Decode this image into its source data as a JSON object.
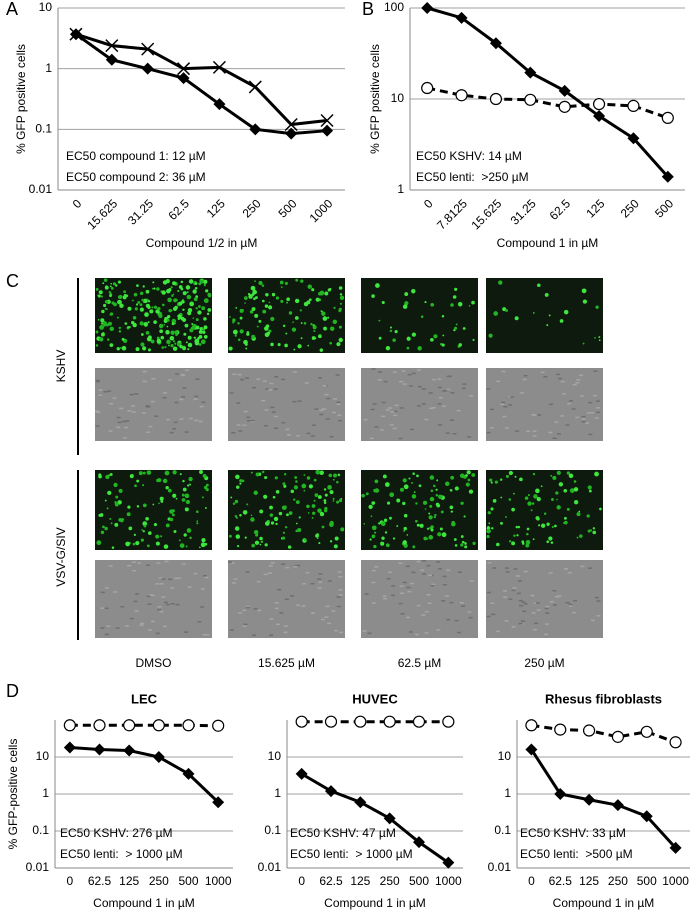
{
  "chart_data": [
    {
      "type": "line",
      "panel_label": "A",
      "x_label": "Compound 1/2 in µM",
      "y_label": "% GFP positive cells",
      "categories": [
        "0",
        "15.625",
        "31.25",
        "62.5",
        "125",
        "250",
        "500",
        "1000"
      ],
      "series": [
        {
          "color": "#000000",
          "marker": "diamond",
          "line_style": "solid",
          "values": [
            3.7,
            1.4,
            1.0,
            0.7,
            0.26,
            0.1,
            0.085,
            0.095
          ]
        },
        {
          "color": "#000000",
          "marker": "x",
          "line_style": "solid",
          "values": [
            3.7,
            2.4,
            2.1,
            1.0,
            1.05,
            0.5,
            0.12,
            0.14
          ]
        }
      ],
      "annotations": [
        "EC50 compound 1: 12 µM",
        "EC50 compound 2: 36 µM"
      ],
      "log_y": true,
      "ylim": [
        0.01,
        10
      ],
      "yticks": [
        0.01,
        0.1,
        1,
        10
      ],
      "grid": true
    },
    {
      "type": "line",
      "panel_label": "B",
      "x_label": "Compound 1 in µM",
      "y_label": "% GFP positive cells",
      "categories": [
        "0",
        "7.8125",
        "15.625",
        "31.25",
        "62.5",
        "125",
        "250",
        "500"
      ],
      "series": [
        {
          "color": "#000000",
          "marker": "diamond",
          "line_style": "solid",
          "values": [
            100,
            78,
            41,
            19.5,
            12.3,
            6.5,
            3.7,
            1.4
          ]
        },
        {
          "color": "#000000",
          "marker": "circle",
          "line_style": "dashed",
          "values": [
            13.2,
            11,
            10,
            9.8,
            8.2,
            8.8,
            8.4,
            6.2
          ]
        }
      ],
      "annotations": [
        "EC50 KSHV: 14 µM",
        "EC50 lenti:  >250 µM"
      ],
      "log_y": true,
      "ylim": [
        1,
        100
      ],
      "yticks": [
        1,
        10,
        100
      ],
      "grid": true
    },
    {
      "type": "line",
      "panel_label": "D",
      "title": "LEC",
      "x_label": "Compound 1 in µM",
      "y_label": "% GFP-positive cells",
      "categories": [
        "0",
        "62.5",
        "125",
        "250",
        "500",
        "1000"
      ],
      "series": [
        {
          "color": "#000000",
          "marker": "circle",
          "line_style": "dashed",
          "values": [
            72,
            72,
            72,
            72,
            72,
            70
          ]
        },
        {
          "color": "#000000",
          "marker": "diamond",
          "line_style": "solid",
          "values": [
            18,
            16,
            15,
            10,
            3.5,
            0.6
          ]
        }
      ],
      "annotations": [
        "EC50 KSHV: 276 µM",
        "EC50 lenti:  > 1000 µM"
      ],
      "log_y": true,
      "ylim": [
        0.01,
        100
      ],
      "yticks": [
        0.01,
        0.1,
        1,
        10
      ],
      "grid": true
    },
    {
      "type": "line",
      "title": "HUVEC",
      "x_label": "Compound 1 in µM",
      "categories": [
        "0",
        "62.5",
        "125",
        "250",
        "500",
        "1000"
      ],
      "series": [
        {
          "color": "#000000",
          "marker": "circle",
          "line_style": "dashed",
          "values": [
            90,
            90,
            90,
            90,
            90,
            90
          ]
        },
        {
          "color": "#000000",
          "marker": "diamond",
          "line_style": "solid",
          "values": [
            3.5,
            1.2,
            0.6,
            0.22,
            0.05,
            0.014
          ]
        }
      ],
      "annotations": [
        "EC50 KSHV: 47 µM",
        "EC50 lenti:  > 1000 µM"
      ],
      "log_y": true,
      "ylim": [
        0.01,
        100
      ],
      "yticks": [
        0.01,
        0.1,
        1,
        10
      ],
      "grid": true
    },
    {
      "type": "line",
      "title": "Rhesus fibroblasts",
      "x_label": "Compound 1 in µM",
      "categories": [
        "0",
        "62.5",
        "125",
        "250",
        "500",
        "1000"
      ],
      "series": [
        {
          "color": "#000000",
          "marker": "circle",
          "line_style": "dashed",
          "values": [
            72,
            55,
            52,
            35,
            48,
            25
          ]
        },
        {
          "color": "#000000",
          "marker": "diamond",
          "line_style": "solid",
          "values": [
            16,
            1.0,
            0.7,
            0.5,
            0.25,
            0.035
          ]
        }
      ],
      "annotations": [
        "EC50 KSHV: 33 µM",
        "EC50 lenti:  >500 µM"
      ],
      "log_y": true,
      "ylim": [
        0.01,
        100
      ],
      "yticks": [
        0.01,
        0.1,
        1,
        10
      ],
      "grid": true
    }
  ],
  "image_grid": {
    "panel_label": "C",
    "row_labels": [
      "KSHV",
      "VSV-G/SIV"
    ],
    "column_labels": [
      "DMSO",
      "15.625 µM",
      "62.5 µM",
      "250 µM"
    ]
  }
}
